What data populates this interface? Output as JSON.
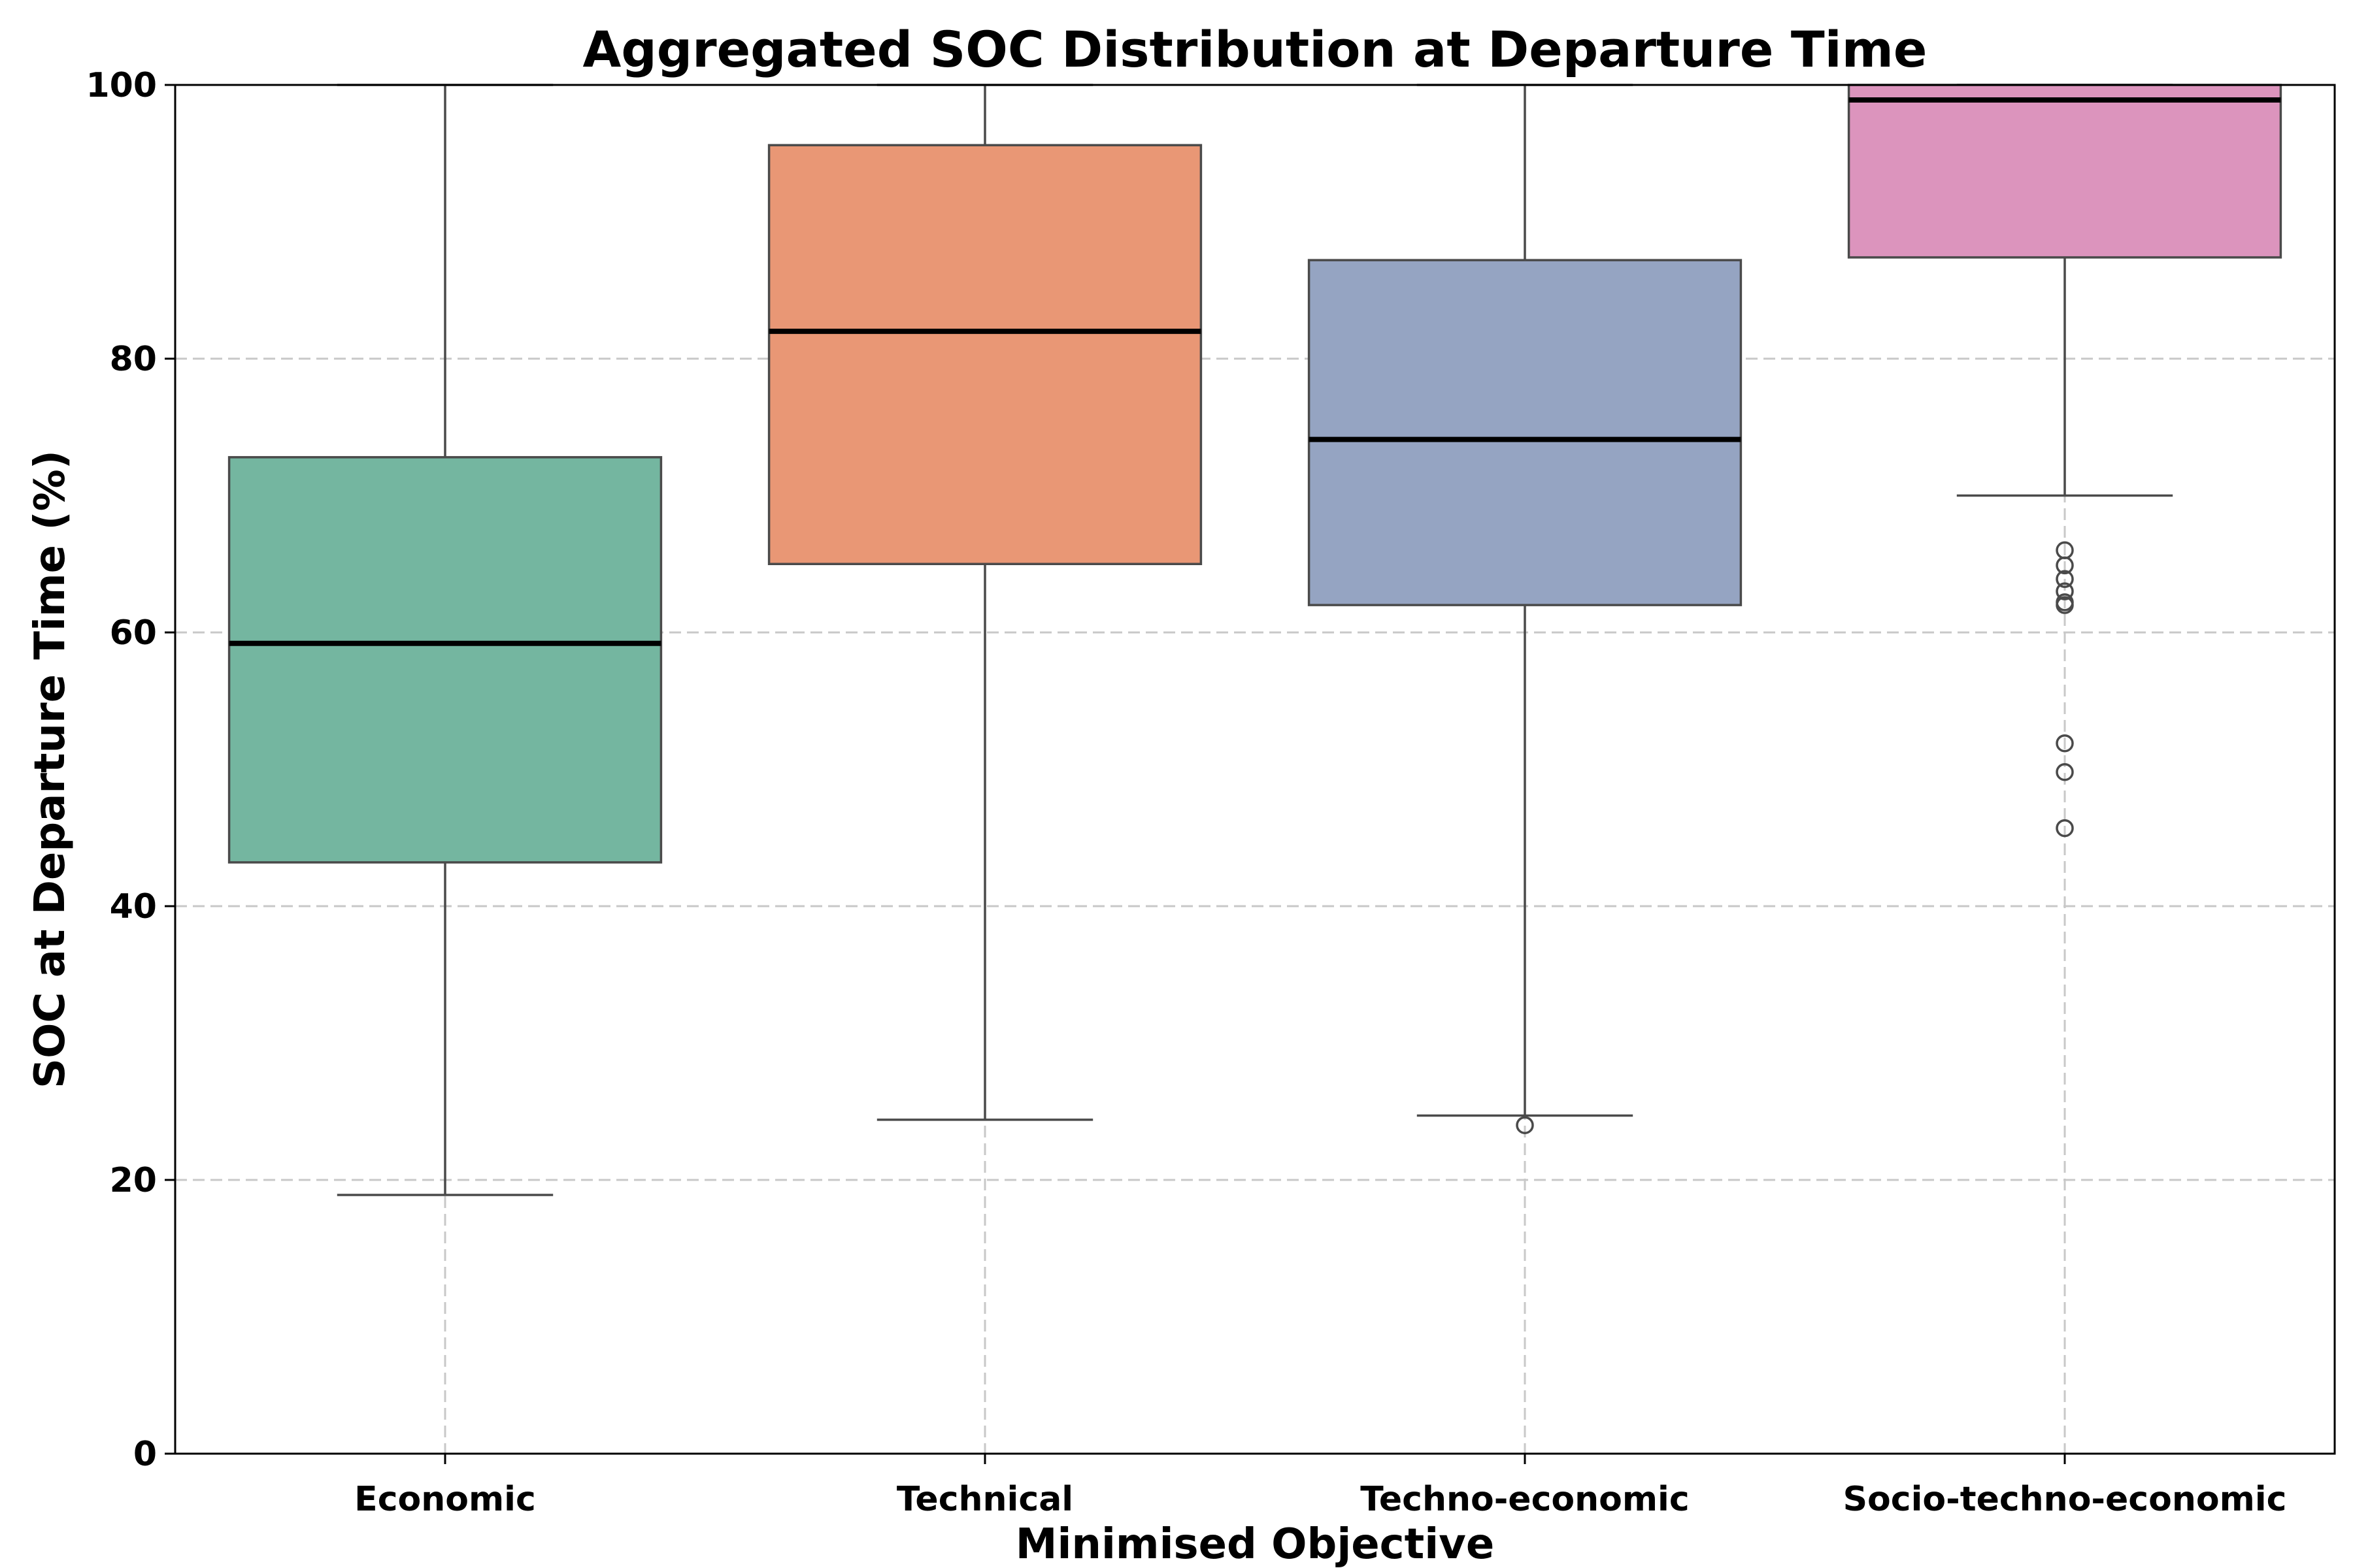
{
  "chart_data": {
    "type": "box",
    "title": "Aggregated SOC Distribution at Departure Time",
    "xlabel": "Minimised Objective",
    "ylabel": "SOC at Departure Time (%)",
    "ylim": [
      0,
      100
    ],
    "yticks": [
      0,
      20,
      40,
      60,
      80,
      100
    ],
    "grid": true,
    "categories": [
      "Economic",
      "Technical",
      "Techno-economic",
      "Socio-techno-economic"
    ],
    "boxes": [
      {
        "category": "Economic",
        "whisker_low": 18.9,
        "q1": 43.2,
        "median": 59.2,
        "q3": 72.8,
        "whisker_high": 100.0,
        "outliers": [],
        "color": "#74b6a0"
      },
      {
        "category": "Technical",
        "whisker_low": 24.4,
        "q1": 65.0,
        "median": 82.0,
        "q3": 95.6,
        "whisker_high": 100.0,
        "outliers": [],
        "color": "#e99775"
      },
      {
        "category": "Techno-economic",
        "whisker_low": 24.7,
        "q1": 62.0,
        "median": 74.1,
        "q3": 87.2,
        "whisker_high": 100.0,
        "outliers": [
          24.0
        ],
        "color": "#95a4c2"
      },
      {
        "category": "Socio-techno-economic",
        "whisker_low": 70.0,
        "q1": 87.4,
        "median": 98.9,
        "q3": 100.0,
        "whisker_high": 100.0,
        "outliers": [
          66.0,
          64.9,
          63.9,
          63.0,
          62.2,
          62.0,
          51.9,
          49.8,
          45.7
        ],
        "color": "#dc94bd"
      }
    ]
  }
}
